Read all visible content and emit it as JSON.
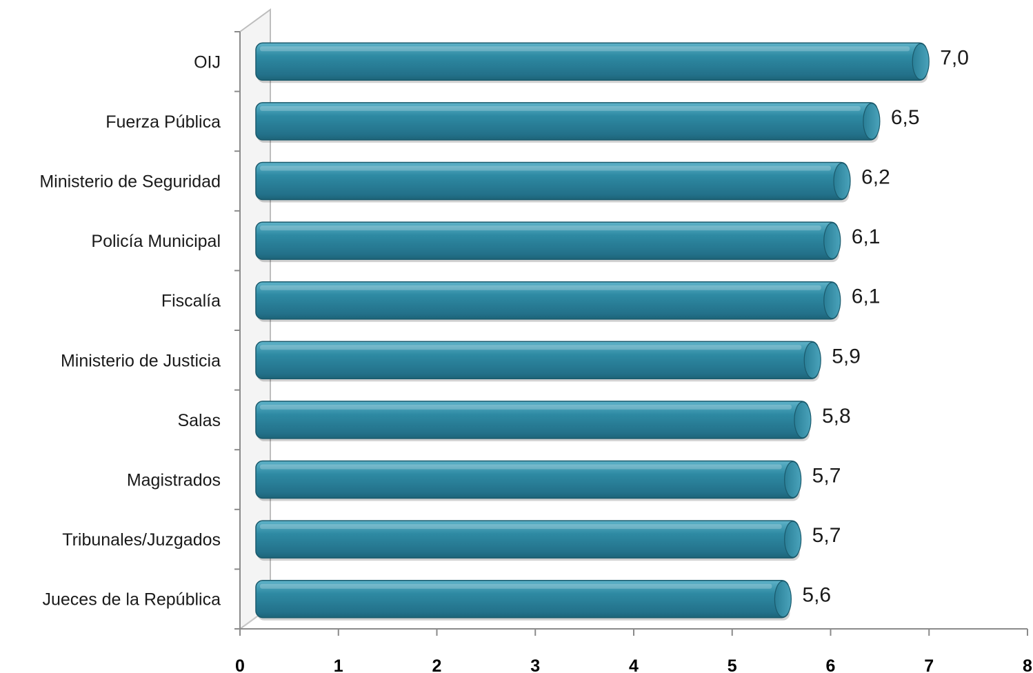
{
  "chart_data": {
    "type": "bar",
    "orientation": "horizontal",
    "title": "",
    "categories": [
      "OIJ",
      "Fuerza Pública",
      "Ministerio de Seguridad",
      "Policía Municipal",
      "Fiscalía",
      "Ministerio de Justicia",
      "Salas",
      "Magistrados",
      "Tribunales/Juzgados",
      "Jueces de la República"
    ],
    "values": [
      7.0,
      6.5,
      6.2,
      6.1,
      6.1,
      5.9,
      5.8,
      5.7,
      5.7,
      5.6
    ],
    "value_labels": [
      "7,0",
      "6,5",
      "6,2",
      "6,1",
      "6,1",
      "5,9",
      "5,8",
      "5,7",
      "5,7",
      "5,6"
    ],
    "xlim": [
      0,
      8
    ],
    "x_ticks": [
      "0",
      "1",
      "2",
      "3",
      "4",
      "5",
      "6",
      "7",
      "8"
    ],
    "xlabel": "",
    "ylabel": "",
    "grid": false,
    "legend": "none",
    "colors": {
      "bar": "#2e8aa3",
      "bar_dark": "#1d6478",
      "bar_light": "#5fb3c9",
      "title": "#1f3c88"
    }
  }
}
